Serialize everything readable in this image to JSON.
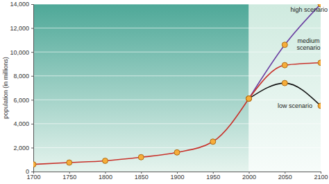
{
  "chart_data": {
    "type": "line",
    "y_label": "population (in millions)",
    "xlim": [
      1700,
      2100
    ],
    "xticks": [
      1700,
      1750,
      1800,
      1850,
      1900,
      1950,
      2000,
      2050,
      2100
    ],
    "ylim": [
      0,
      14000
    ],
    "yticks": [
      0,
      {
        "value": 2000,
        "label": "2,000"
      },
      {
        "value": 4000,
        "label": "4,000"
      },
      {
        "value": 6000,
        "label": "6,000"
      },
      {
        "value": 8000,
        "label": "8,000"
      },
      {
        "value": 10000,
        "label": "10,000"
      },
      {
        "value": 12000,
        "label": "12,000"
      },
      {
        "value": 14000,
        "label": "14,000"
      }
    ],
    "grid": true,
    "marker": "circle",
    "series": [
      {
        "color": "#c8322b",
        "x": [
          1700,
          1750,
          1800,
          1850,
          1900,
          1950,
          2000
        ],
        "values": [
          600,
          750,
          900,
          1200,
          1600,
          2500,
          6100
        ]
      },
      {
        "name": "high scenario",
        "color": "#6a3ea1",
        "x": [
          2000,
          2050,
          2100
        ],
        "values": [
          6100,
          10600,
          14000
        ]
      },
      {
        "name": "medium scenario",
        "color": "#c8322b",
        "x": [
          2000,
          2050,
          2100
        ],
        "values": [
          6100,
          8900,
          9100
        ]
      },
      {
        "name": "low scenario",
        "color": "#111111",
        "x": [
          2000,
          2050,
          2100
        ],
        "values": [
          6100,
          7400,
          5500
        ]
      }
    ]
  }
}
